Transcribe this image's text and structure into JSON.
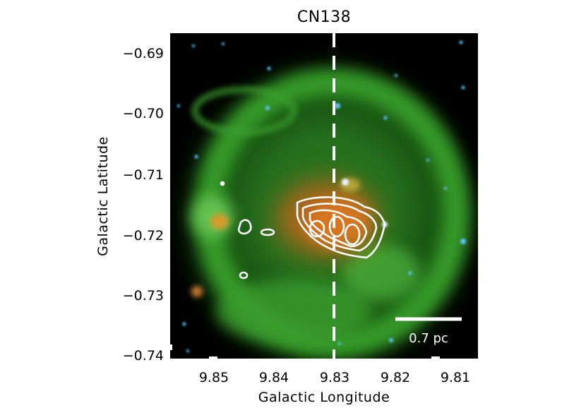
{
  "figure": {
    "title": "CN138",
    "xlabel": "Galactic Longitude",
    "ylabel": "Galactic Latitude",
    "x_ticks": [
      "9.85",
      "9.84",
      "9.83",
      "9.82",
      "9.81"
    ],
    "y_ticks": [
      "−0.69",
      "−0.70",
      "−0.71",
      "−0.72",
      "−0.73",
      "−0.74"
    ],
    "scale_bar_label": "0.7 pc",
    "colors": {
      "background": "#000000",
      "diffuse_emission": "#2f9a26",
      "central_emission": "#c8651c",
      "stars": "#5fc6ff",
      "contours": "#ffffff",
      "dashed_line": "#ffffff"
    }
  }
}
